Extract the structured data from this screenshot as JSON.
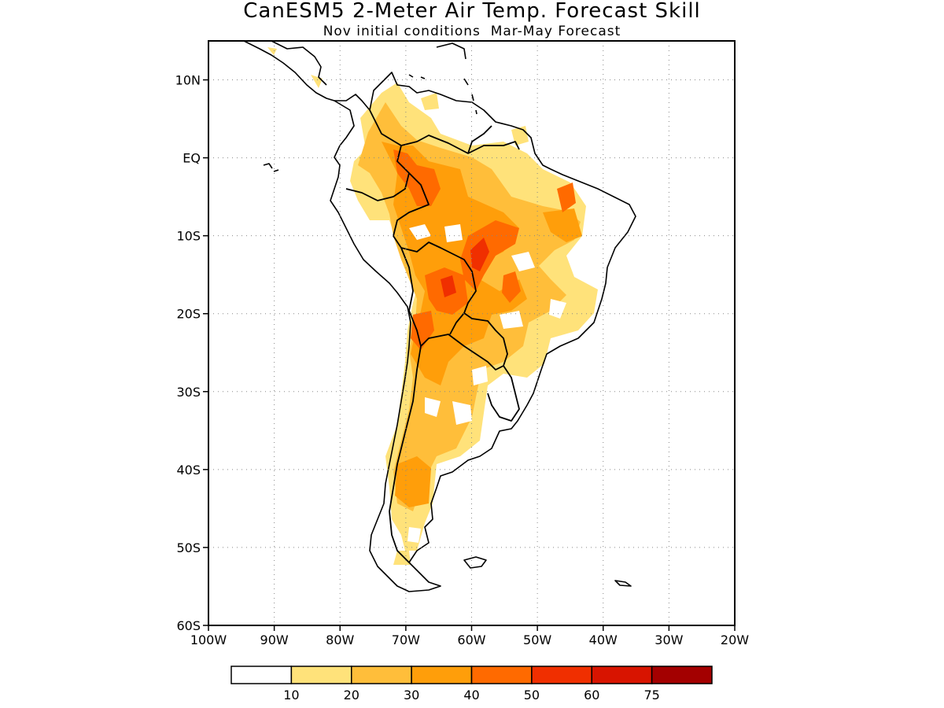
{
  "title": "CanESM5 2-Meter Air Temp. Forecast Skill",
  "subtitle": "Nov initial conditions  Mar-May Forecast",
  "map": {
    "lon_range": [
      -100,
      -20
    ],
    "lat_range": [
      -60,
      15
    ],
    "lat_ticks": [
      {
        "value": 10,
        "label": "10N"
      },
      {
        "value": 0,
        "label": "EQ"
      },
      {
        "value": -10,
        "label": "10S"
      },
      {
        "value": -20,
        "label": "20S"
      },
      {
        "value": -30,
        "label": "30S"
      },
      {
        "value": -40,
        "label": "40S"
      },
      {
        "value": -50,
        "label": "50S"
      },
      {
        "value": -60,
        "label": "60S"
      }
    ],
    "lon_ticks": [
      {
        "value": -100,
        "label": "100W"
      },
      {
        "value": -90,
        "label": "90W"
      },
      {
        "value": -80,
        "label": "80W"
      },
      {
        "value": -70,
        "label": "70W"
      },
      {
        "value": -60,
        "label": "60W"
      },
      {
        "value": -50,
        "label": "50W"
      },
      {
        "value": -40,
        "label": "40W"
      },
      {
        "value": -30,
        "label": "30W"
      },
      {
        "value": -20,
        "label": "20W"
      }
    ]
  },
  "colorbar": {
    "colors": [
      "#ffffff",
      "#ffe27a",
      "#ffbe3a",
      "#ff9e0a",
      "#ff6a00",
      "#f02f00",
      "#d81400",
      "#a30000"
    ],
    "labels": [
      "10",
      "20",
      "30",
      "40",
      "50",
      "60",
      "75"
    ]
  }
}
